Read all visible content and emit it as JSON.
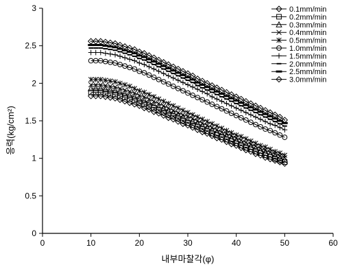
{
  "chart_data": {
    "type": "line",
    "title": "",
    "xlabel": "내부마찰각(φ)",
    "ylabel": "응력(kg/cm²)",
    "xlim": [
      0,
      60
    ],
    "ylim": [
      0,
      3
    ],
    "xticks": [
      "0",
      "10",
      "20",
      "30",
      "40",
      "50",
      "60"
    ],
    "yticks": [
      "0",
      "0.5",
      "1",
      "1.5",
      "2",
      "2.5",
      "3"
    ],
    "grid": false,
    "legend_position": "top-right",
    "x": [
      10,
      11,
      12,
      13,
      14,
      15,
      16,
      17,
      18,
      19,
      20,
      21,
      22,
      23,
      24,
      25,
      26,
      27,
      28,
      29,
      30,
      31,
      32,
      33,
      34,
      35,
      36,
      37,
      38,
      39,
      40,
      41,
      42,
      43,
      44,
      45,
      46,
      47,
      48,
      49,
      50
    ],
    "series": [
      {
        "name": "0.1mm/min",
        "marker": "diamond",
        "values": [
          1.83,
          1.83,
          1.83,
          1.82,
          1.81,
          1.8,
          1.78,
          1.76,
          1.74,
          1.72,
          1.7,
          1.67,
          1.65,
          1.62,
          1.6,
          1.57,
          1.54,
          1.52,
          1.49,
          1.46,
          1.44,
          1.41,
          1.38,
          1.35,
          1.33,
          1.3,
          1.27,
          1.25,
          1.22,
          1.19,
          1.17,
          1.14,
          1.11,
          1.09,
          1.06,
          1.04,
          1.01,
          0.99,
          0.97,
          0.95,
          0.93
        ]
      },
      {
        "name": "0.2mm/min",
        "marker": "square",
        "values": [
          1.88,
          1.88,
          1.88,
          1.87,
          1.86,
          1.85,
          1.83,
          1.81,
          1.79,
          1.77,
          1.74,
          1.72,
          1.69,
          1.67,
          1.64,
          1.61,
          1.58,
          1.56,
          1.53,
          1.5,
          1.47,
          1.44,
          1.42,
          1.39,
          1.36,
          1.33,
          1.31,
          1.28,
          1.25,
          1.23,
          1.2,
          1.17,
          1.14,
          1.12,
          1.09,
          1.07,
          1.04,
          1.02,
          0.99,
          0.97,
          0.95
        ]
      },
      {
        "name": "0.3mm/min",
        "marker": "triangle",
        "values": [
          1.93,
          1.93,
          1.93,
          1.92,
          1.91,
          1.9,
          1.88,
          1.86,
          1.84,
          1.82,
          1.79,
          1.77,
          1.74,
          1.71,
          1.68,
          1.66,
          1.63,
          1.6,
          1.57,
          1.54,
          1.51,
          1.49,
          1.46,
          1.43,
          1.4,
          1.37,
          1.34,
          1.32,
          1.29,
          1.26,
          1.23,
          1.21,
          1.18,
          1.15,
          1.13,
          1.1,
          1.07,
          1.05,
          1.03,
          1.0,
          0.98
        ]
      },
      {
        "name": "0.4mm/min",
        "marker": "x",
        "values": [
          1.98,
          1.98,
          1.98,
          1.97,
          1.96,
          1.95,
          1.93,
          1.91,
          1.89,
          1.87,
          1.84,
          1.82,
          1.79,
          1.76,
          1.73,
          1.7,
          1.67,
          1.64,
          1.61,
          1.58,
          1.56,
          1.53,
          1.5,
          1.47,
          1.44,
          1.41,
          1.38,
          1.35,
          1.33,
          1.3,
          1.27,
          1.24,
          1.21,
          1.19,
          1.16,
          1.13,
          1.11,
          1.08,
          1.06,
          1.03,
          1.01
        ]
      },
      {
        "name": "0.5mm/min",
        "marker": "asterisk",
        "values": [
          2.05,
          2.05,
          2.05,
          2.04,
          2.03,
          2.02,
          2.0,
          1.98,
          1.96,
          1.93,
          1.9,
          1.88,
          1.85,
          1.82,
          1.79,
          1.76,
          1.73,
          1.7,
          1.67,
          1.64,
          1.61,
          1.58,
          1.55,
          1.52,
          1.49,
          1.46,
          1.43,
          1.4,
          1.37,
          1.34,
          1.31,
          1.29,
          1.26,
          1.23,
          1.2,
          1.17,
          1.15,
          1.12,
          1.09,
          1.07,
          1.04
        ]
      },
      {
        "name": "1.0mm/min",
        "marker": "circle",
        "values": [
          2.3,
          2.3,
          2.3,
          2.29,
          2.28,
          2.27,
          2.25,
          2.23,
          2.21,
          2.19,
          2.16,
          2.14,
          2.11,
          2.08,
          2.05,
          2.02,
          1.99,
          1.96,
          1.93,
          1.9,
          1.87,
          1.84,
          1.81,
          1.78,
          1.75,
          1.72,
          1.69,
          1.66,
          1.63,
          1.6,
          1.57,
          1.54,
          1.51,
          1.48,
          1.45,
          1.42,
          1.39,
          1.37,
          1.34,
          1.31,
          1.28
        ]
      },
      {
        "name": "1.5mm/min",
        "marker": "plus",
        "values": [
          2.41,
          2.41,
          2.41,
          2.4,
          2.39,
          2.38,
          2.36,
          2.34,
          2.32,
          2.3,
          2.27,
          2.25,
          2.22,
          2.19,
          2.16,
          2.13,
          2.1,
          2.07,
          2.04,
          2.01,
          1.98,
          1.95,
          1.92,
          1.89,
          1.86,
          1.82,
          1.79,
          1.76,
          1.73,
          1.7,
          1.67,
          1.64,
          1.61,
          1.58,
          1.55,
          1.52,
          1.49,
          1.46,
          1.44,
          1.41,
          1.38
        ]
      },
      {
        "name": "2.0mm/min",
        "marker": "dash",
        "values": [
          2.47,
          2.47,
          2.47,
          2.46,
          2.45,
          2.44,
          2.42,
          2.4,
          2.38,
          2.36,
          2.33,
          2.31,
          2.28,
          2.25,
          2.22,
          2.19,
          2.16,
          2.13,
          2.1,
          2.07,
          2.04,
          2.01,
          1.97,
          1.94,
          1.91,
          1.88,
          1.85,
          1.82,
          1.79,
          1.76,
          1.73,
          1.7,
          1.67,
          1.64,
          1.61,
          1.58,
          1.55,
          1.52,
          1.49,
          1.46,
          1.43
        ]
      },
      {
        "name": "2.5mm/min",
        "marker": "thickdash",
        "values": [
          2.51,
          2.51,
          2.51,
          2.5,
          2.49,
          2.48,
          2.46,
          2.44,
          2.42,
          2.4,
          2.37,
          2.35,
          2.32,
          2.29,
          2.26,
          2.23,
          2.2,
          2.17,
          2.14,
          2.11,
          2.08,
          2.05,
          2.01,
          1.98,
          1.95,
          1.92,
          1.89,
          1.86,
          1.83,
          1.8,
          1.77,
          1.74,
          1.71,
          1.68,
          1.65,
          1.62,
          1.59,
          1.56,
          1.53,
          1.5,
          1.47
        ]
      },
      {
        "name": "3.0mm/min",
        "marker": "diamond-dot",
        "values": [
          2.56,
          2.56,
          2.56,
          2.55,
          2.54,
          2.53,
          2.51,
          2.49,
          2.47,
          2.45,
          2.42,
          2.4,
          2.37,
          2.34,
          2.31,
          2.28,
          2.25,
          2.22,
          2.19,
          2.16,
          2.13,
          2.1,
          2.06,
          2.03,
          2.0,
          1.97,
          1.94,
          1.91,
          1.88,
          1.85,
          1.82,
          1.79,
          1.76,
          1.73,
          1.7,
          1.67,
          1.64,
          1.61,
          1.58,
          1.55,
          1.51
        ]
      }
    ]
  }
}
